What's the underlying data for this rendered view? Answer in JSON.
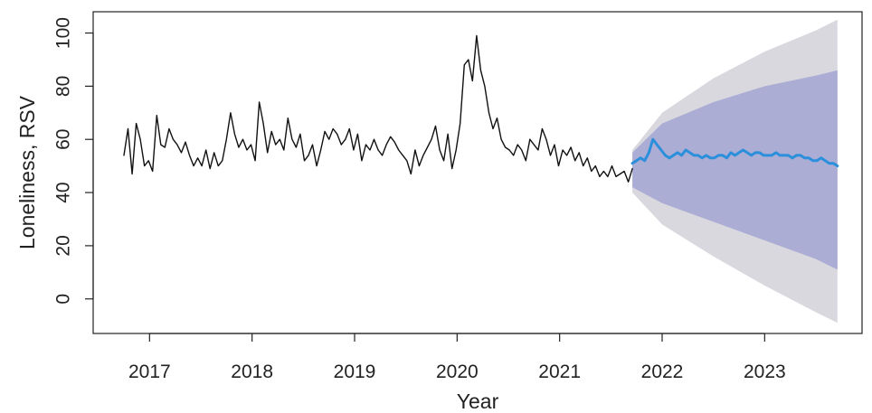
{
  "chart_data": {
    "type": "line",
    "title": "",
    "xlabel": "Year",
    "ylabel": "Loneliness, RSV",
    "xlim": [
      2016.45,
      2023.95
    ],
    "ylim": [
      -13,
      108
    ],
    "x_ticks": [
      2017,
      2018,
      2019,
      2020,
      2021,
      2022,
      2023
    ],
    "x_tick_labels": [
      "2017",
      "2018",
      "2019",
      "2020",
      "2021",
      "2022",
      "2023"
    ],
    "y_ticks": [
      0,
      20,
      40,
      60,
      80,
      100
    ],
    "y_tick_labels": [
      "0",
      "20",
      "40",
      "60",
      "80",
      "100"
    ],
    "grid": false,
    "legend": "none",
    "colors": {
      "observed": "#111111",
      "forecast": "#2b8fdc",
      "band_95": "#d9d8df",
      "band_80": "#abadd4"
    },
    "series": [
      {
        "role": "observed",
        "x": [
          2016.75,
          2016.79,
          2016.83,
          2016.87,
          2016.91,
          2016.95,
          2016.99,
          2017.03,
          2017.07,
          2017.11,
          2017.15,
          2017.19,
          2017.23,
          2017.27,
          2017.31,
          2017.35,
          2017.39,
          2017.43,
          2017.47,
          2017.51,
          2017.55,
          2017.59,
          2017.63,
          2017.67,
          2017.71,
          2017.75,
          2017.79,
          2017.83,
          2017.87,
          2017.91,
          2017.95,
          2017.99,
          2018.03,
          2018.07,
          2018.11,
          2018.15,
          2018.19,
          2018.23,
          2018.27,
          2018.31,
          2018.35,
          2018.39,
          2018.43,
          2018.47,
          2018.51,
          2018.55,
          2018.59,
          2018.63,
          2018.67,
          2018.71,
          2018.75,
          2018.79,
          2018.83,
          2018.87,
          2018.91,
          2018.95,
          2018.99,
          2019.03,
          2019.07,
          2019.11,
          2019.15,
          2019.19,
          2019.23,
          2019.27,
          2019.31,
          2019.35,
          2019.39,
          2019.43,
          2019.47,
          2019.51,
          2019.55,
          2019.59,
          2019.63,
          2019.67,
          2019.71,
          2019.75,
          2019.79,
          2019.83,
          2019.87,
          2019.91,
          2019.95,
          2019.99,
          2020.03,
          2020.07,
          2020.11,
          2020.15,
          2020.19,
          2020.23,
          2020.27,
          2020.31,
          2020.35,
          2020.39,
          2020.43,
          2020.47,
          2020.51,
          2020.55,
          2020.59,
          2020.63,
          2020.67,
          2020.71,
          2020.75,
          2020.79,
          2020.83,
          2020.87,
          2020.91,
          2020.95,
          2020.99,
          2021.03,
          2021.07,
          2021.11,
          2021.15,
          2021.19,
          2021.23,
          2021.27,
          2021.31,
          2021.35,
          2021.39,
          2021.43,
          2021.47,
          2021.51,
          2021.55,
          2021.59,
          2021.63,
          2021.67,
          2021.71
        ],
        "y": [
          54,
          64,
          47,
          66,
          60,
          50,
          52,
          48,
          69,
          58,
          57,
          64,
          60,
          58,
          55,
          59,
          54,
          50,
          53,
          50,
          56,
          49,
          55,
          50,
          52,
          60,
          70,
          62,
          57,
          60,
          56,
          58,
          52,
          74,
          66,
          55,
          63,
          58,
          60,
          56,
          68,
          60,
          57,
          62,
          52,
          54,
          58,
          50,
          56,
          63,
          60,
          64,
          62,
          58,
          60,
          64,
          56,
          62,
          52,
          58,
          56,
          60,
          56,
          54,
          58,
          61,
          59,
          56,
          54,
          52,
          47,
          56,
          50,
          54,
          57,
          60,
          65,
          56,
          52,
          62,
          49,
          56,
          66,
          88,
          90,
          82,
          99,
          86,
          80,
          70,
          64,
          68,
          60,
          57,
          56,
          54,
          58,
          56,
          52,
          60,
          58,
          56,
          64,
          60,
          54,
          58,
          50,
          56,
          54,
          57,
          52,
          55,
          50,
          53,
          48,
          50,
          46,
          48,
          46,
          50,
          46,
          47,
          48,
          44,
          49
        ]
      },
      {
        "role": "forecast",
        "x": [
          2021.71,
          2021.75,
          2021.79,
          2021.83,
          2021.87,
          2021.91,
          2021.95,
          2021.99,
          2022.03,
          2022.07,
          2022.11,
          2022.15,
          2022.19,
          2022.23,
          2022.27,
          2022.31,
          2022.35,
          2022.39,
          2022.43,
          2022.47,
          2022.51,
          2022.55,
          2022.59,
          2022.63,
          2022.67,
          2022.71,
          2022.75,
          2022.79,
          2022.83,
          2022.87,
          2022.91,
          2022.95,
          2022.99,
          2023.03,
          2023.07,
          2023.11,
          2023.15,
          2023.19,
          2023.23,
          2023.27,
          2023.31,
          2023.35,
          2023.39,
          2023.43,
          2023.47,
          2023.51,
          2023.55,
          2023.59,
          2023.63,
          2023.67,
          2023.71
        ],
        "y": [
          51,
          52,
          53,
          52,
          55,
          60,
          58,
          56,
          54,
          53,
          54,
          55,
          54,
          56,
          55,
          54,
          54,
          53,
          54,
          53,
          53,
          54,
          54,
          53,
          55,
          54,
          55,
          56,
          55,
          54,
          55,
          55,
          54,
          54,
          54,
          55,
          54,
          54,
          54,
          53,
          54,
          54,
          53,
          53,
          52,
          52,
          53,
          52,
          51,
          51,
          50
        ]
      }
    ],
    "bands": [
      {
        "level": 95,
        "x": [
          2021.71,
          2022.0,
          2022.5,
          2023.0,
          2023.5,
          2023.71
        ],
        "lower": [
          40,
          28,
          16,
          5,
          -5,
          -9
        ],
        "upper": [
          56,
          70,
          83,
          93,
          101,
          105
        ]
      },
      {
        "level": 80,
        "x": [
          2021.71,
          2022.0,
          2022.5,
          2023.0,
          2023.5,
          2023.71
        ],
        "lower": [
          42,
          36,
          29,
          22,
          15,
          11
        ],
        "upper": [
          55,
          66,
          74,
          80,
          84,
          86
        ]
      }
    ]
  }
}
